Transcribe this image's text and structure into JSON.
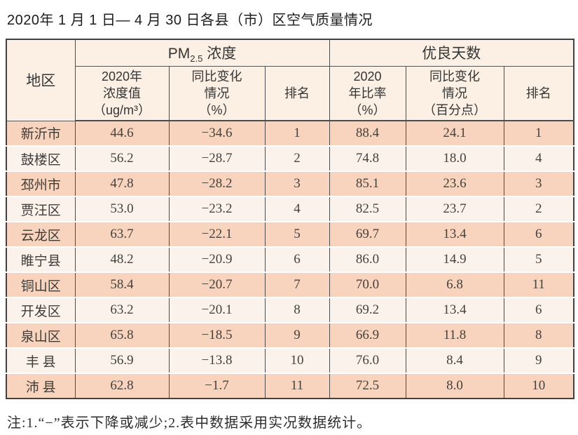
{
  "title": "2020年 1 月 1 日— 4 月 30 日各县（市）区空气质量情况",
  "colors": {
    "row_odd_bg": "#f8d3bd",
    "row_even_bg": "#fcf2ec",
    "header_bg": "#fbf0e3",
    "border": "#4c4c4c"
  },
  "table": {
    "header": {
      "region": "地区",
      "pm_group": {
        "prefix": "PM",
        "sub": "2.5",
        "suffix": " 浓度"
      },
      "good_group": "优良天数",
      "pm_value": "2020年\n浓度值\n（ug/m³）",
      "pm_change": "同比变化\n情况\n（%）",
      "pm_rank": "排名",
      "good_rate": "2020\n年比率\n（%）",
      "good_change": "同比变化\n情况\n（百分点）",
      "good_rank": "排名"
    },
    "rows": [
      {
        "region": "新沂市",
        "pm_value": "44.6",
        "pm_change": "−34.6",
        "pm_rank": "1",
        "good_rate": "88.4",
        "good_change": "24.1",
        "good_rank": "1"
      },
      {
        "region": "鼓楼区",
        "pm_value": "56.2",
        "pm_change": "−28.7",
        "pm_rank": "2",
        "good_rate": "74.8",
        "good_change": "18.0",
        "good_rank": "4"
      },
      {
        "region": "邳州市",
        "pm_value": "47.8",
        "pm_change": "−28.2",
        "pm_rank": "3",
        "good_rate": "85.1",
        "good_change": "23.6",
        "good_rank": "3"
      },
      {
        "region": "贾汪区",
        "pm_value": "53.0",
        "pm_change": "−23.2",
        "pm_rank": "4",
        "good_rate": "82.5",
        "good_change": "23.7",
        "good_rank": "2"
      },
      {
        "region": "云龙区",
        "pm_value": "63.7",
        "pm_change": "−22.1",
        "pm_rank": "5",
        "good_rate": "69.7",
        "good_change": "13.4",
        "good_rank": "6"
      },
      {
        "region": "睢宁县",
        "pm_value": "48.2",
        "pm_change": "−20.9",
        "pm_rank": "6",
        "good_rate": "86.0",
        "good_change": "14.9",
        "good_rank": "5"
      },
      {
        "region": "铜山区",
        "pm_value": "58.4",
        "pm_change": "−20.7",
        "pm_rank": "7",
        "good_rate": "70.0",
        "good_change": "6.8",
        "good_rank": "11"
      },
      {
        "region": "开发区",
        "pm_value": "63.2",
        "pm_change": "−20.1",
        "pm_rank": "8",
        "good_rate": "69.2",
        "good_change": "13.4",
        "good_rank": "6"
      },
      {
        "region": "泉山区",
        "pm_value": "65.8",
        "pm_change": "−18.5",
        "pm_rank": "9",
        "good_rate": "66.9",
        "good_change": "11.8",
        "good_rank": "8"
      },
      {
        "region": "丰 县",
        "pm_value": "56.9",
        "pm_change": "−13.8",
        "pm_rank": "10",
        "good_rate": "76.0",
        "good_change": "8.4",
        "good_rank": "9"
      },
      {
        "region": "沛 县",
        "pm_value": "62.8",
        "pm_change": "−1.7",
        "pm_rank": "11",
        "good_rate": "72.5",
        "good_change": "8.0",
        "good_rank": "10"
      }
    ]
  },
  "footnote": "注:1.“−”表示下降或减少;2.表中数据采用实况数据统计。"
}
